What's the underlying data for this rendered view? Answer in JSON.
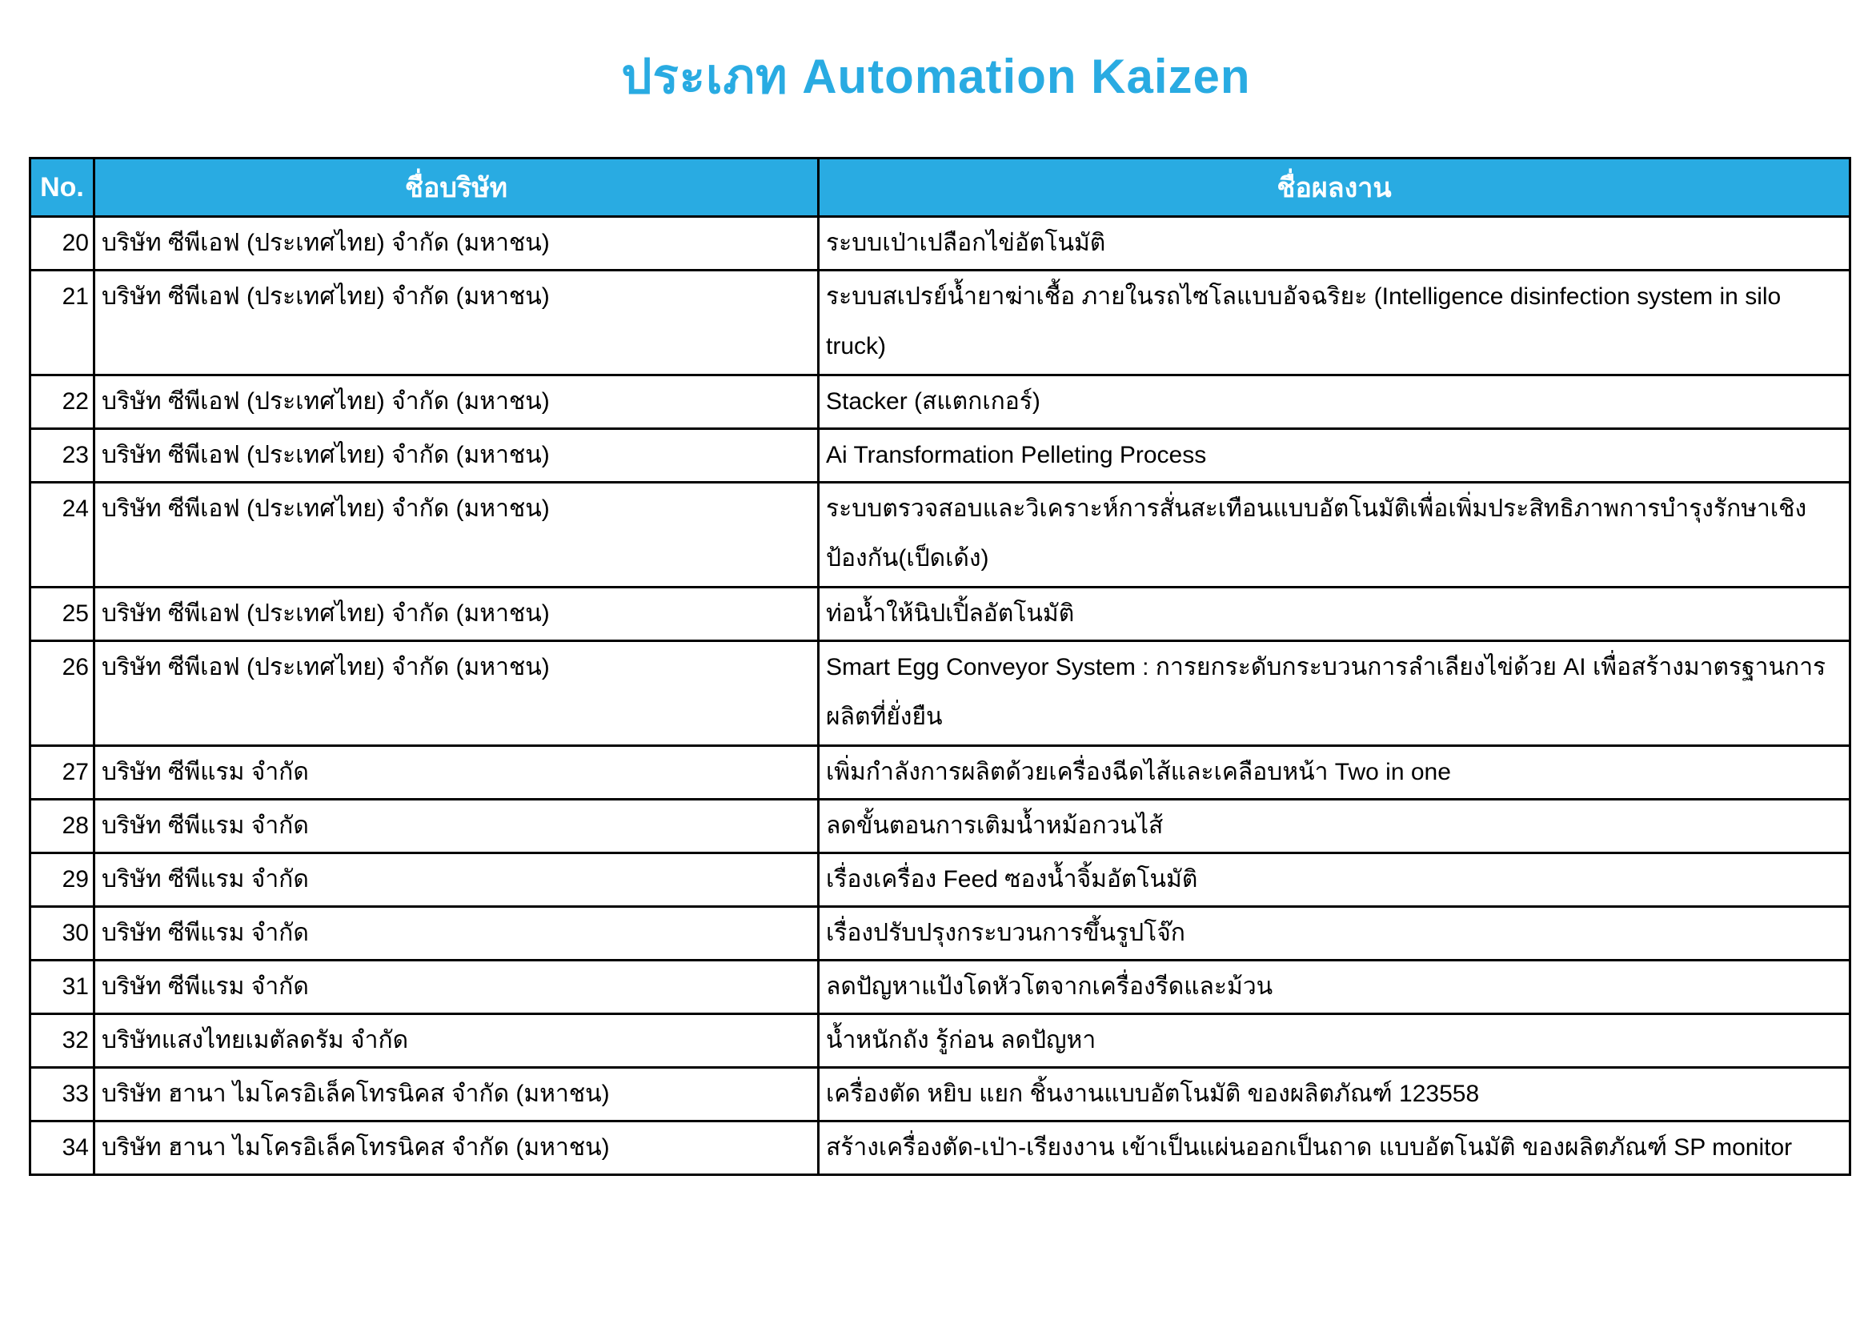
{
  "title": "ประเภท Automation Kaizen",
  "colors": {
    "accent": "#29ABE2",
    "header_text": "#ffffff",
    "border": "#000000",
    "body_text": "#000000"
  },
  "table": {
    "headers": [
      "No.",
      "ชื่อบริษัท",
      "ชื่อผลงาน"
    ],
    "rows": [
      {
        "no": "20",
        "company": "บริษัท ซีพีเอฟ (ประเทศไทย) จำกัด (มหาชน)",
        "work": "ระบบเป่าเปลือกไข่อัตโนมัติ",
        "two_line": false
      },
      {
        "no": "21",
        "company": "บริษัท ซีพีเอฟ (ประเทศไทย) จำกัด (มหาชน)",
        "work": "ระบบสเปรย์น้ำยาฆ่าเชื้อ ภายในรถไซโลแบบอัจฉริยะ (Intelligence disinfection system in silo truck)",
        "two_line": true
      },
      {
        "no": "22",
        "company": "บริษัท ซีพีเอฟ (ประเทศไทย) จำกัด (มหาชน)",
        "work": "Stacker (สแตกเกอร์)",
        "two_line": false
      },
      {
        "no": "23",
        "company": "บริษัท ซีพีเอฟ (ประเทศไทย) จำกัด (มหาชน)",
        "work": "Ai Transformation Pelleting Process",
        "two_line": false
      },
      {
        "no": "24",
        "company": "บริษัท ซีพีเอฟ (ประเทศไทย) จำกัด (มหาชน)",
        "work": "ระบบตรวจสอบและวิเคราะห์การสั่นสะเทือนแบบอัตโนมัติเพื่อเพิ่มประสิทธิภาพการบำรุงรักษาเชิงป้องกัน(เป็ดเด้ง)",
        "two_line": true
      },
      {
        "no": "25",
        "company": "บริษัท ซีพีเอฟ (ประเทศไทย) จำกัด (มหาชน)",
        "work": "ท่อน้ำให้นิปเปิ้ลอัตโนมัติ",
        "two_line": false
      },
      {
        "no": "26",
        "company": "บริษัท ซีพีเอฟ (ประเทศไทย) จำกัด (มหาชน)",
        "work": "Smart Egg Conveyor System : การยกระดับกระบวนการลำเลียงไข่ด้วย AI เพื่อสร้างมาตรฐานการผลิตที่ยั่งยืน",
        "two_line": true
      },
      {
        "no": "27",
        "company": "บริษัท ซีพีแรม จำกัด",
        "work": "เพิ่มกำลังการผลิตด้วยเครื่องฉีดไส้และเคลือบหน้า Two in one",
        "two_line": false
      },
      {
        "no": "28",
        "company": "บริษัท ซีพีแรม จำกัด",
        "work": "ลดขั้นตอนการเติมน้ำหม้อกวนไส้",
        "two_line": false
      },
      {
        "no": "29",
        "company": "บริษัท ซีพีแรม จำกัด",
        "work": "เรื่องเครื่อง Feed ซองน้ำจิ้มอัตโนมัติ",
        "two_line": false
      },
      {
        "no": "30",
        "company": "บริษัท ซีพีแรม จำกัด",
        "work": "เรื่องปรับปรุงกระบวนการขึ้นรูปโจ๊ก",
        "two_line": false
      },
      {
        "no": "31",
        "company": "บริษัท ซีพีแรม จำกัด",
        "work": "ลดปัญหาแป้งโดหัวโตจากเครื่องรีดและม้วน",
        "two_line": false
      },
      {
        "no": "32",
        "company": "บริษัทแสงไทยเมตัลดรัม จำกัด",
        "work": "น้ำหนักถัง รู้ก่อน ลดปัญหา",
        "two_line": false
      },
      {
        "no": "33",
        "company": "บริษัท ฮานา ไมโครอิเล็คโทรนิคส จำกัด (มหาชน)",
        "work": "เครื่องตัด หยิบ แยก ชิ้นงานแบบอัตโนมัติ ของผลิตภัณฑ์ 123558",
        "two_line": false
      },
      {
        "no": "34",
        "company": "บริษัท ฮานา ไมโครอิเล็คโทรนิคส จำกัด (มหาชน)",
        "work": "สร้างเครื่องตัด-เป่า-เรียงงาน เข้าเป็นแผ่นออกเป็นถาด แบบอัตโนมัติ ของผลิตภัณฑ์ SP monitor",
        "two_line": false
      }
    ]
  }
}
